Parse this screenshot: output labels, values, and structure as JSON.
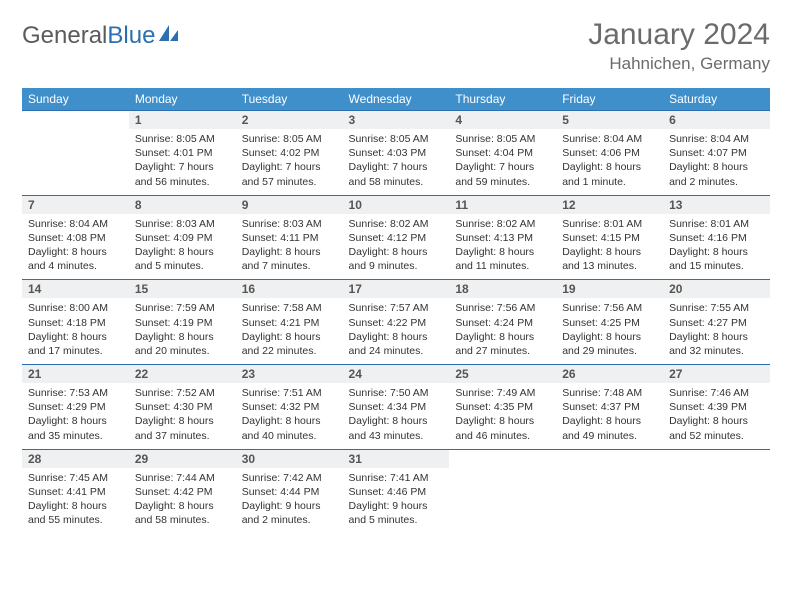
{
  "logo": {
    "text1": "General",
    "text2": "Blue"
  },
  "title": "January 2024",
  "location": "Hahnichen, Germany",
  "day_headers": [
    "Sunday",
    "Monday",
    "Tuesday",
    "Wednesday",
    "Thursday",
    "Friday",
    "Saturday"
  ],
  "colors": {
    "header_bg": "#3f8fcb",
    "header_text": "#ffffff",
    "daynum_bg": "#eef0f1",
    "border": "#2c6fb0",
    "text": "#333333",
    "title_text": "#6b6b6b"
  },
  "weeks": [
    {
      "nums": [
        "",
        "1",
        "2",
        "3",
        "4",
        "5",
        "6"
      ],
      "cells": [
        "",
        "Sunrise: 8:05 AM\nSunset: 4:01 PM\nDaylight: 7 hours and 56 minutes.",
        "Sunrise: 8:05 AM\nSunset: 4:02 PM\nDaylight: 7 hours and 57 minutes.",
        "Sunrise: 8:05 AM\nSunset: 4:03 PM\nDaylight: 7 hours and 58 minutes.",
        "Sunrise: 8:05 AM\nSunset: 4:04 PM\nDaylight: 7 hours and 59 minutes.",
        "Sunrise: 8:04 AM\nSunset: 4:06 PM\nDaylight: 8 hours and 1 minute.",
        "Sunrise: 8:04 AM\nSunset: 4:07 PM\nDaylight: 8 hours and 2 minutes."
      ]
    },
    {
      "nums": [
        "7",
        "8",
        "9",
        "10",
        "11",
        "12",
        "13"
      ],
      "cells": [
        "Sunrise: 8:04 AM\nSunset: 4:08 PM\nDaylight: 8 hours and 4 minutes.",
        "Sunrise: 8:03 AM\nSunset: 4:09 PM\nDaylight: 8 hours and 5 minutes.",
        "Sunrise: 8:03 AM\nSunset: 4:11 PM\nDaylight: 8 hours and 7 minutes.",
        "Sunrise: 8:02 AM\nSunset: 4:12 PM\nDaylight: 8 hours and 9 minutes.",
        "Sunrise: 8:02 AM\nSunset: 4:13 PM\nDaylight: 8 hours and 11 minutes.",
        "Sunrise: 8:01 AM\nSunset: 4:15 PM\nDaylight: 8 hours and 13 minutes.",
        "Sunrise: 8:01 AM\nSunset: 4:16 PM\nDaylight: 8 hours and 15 minutes."
      ]
    },
    {
      "nums": [
        "14",
        "15",
        "16",
        "17",
        "18",
        "19",
        "20"
      ],
      "cells": [
        "Sunrise: 8:00 AM\nSunset: 4:18 PM\nDaylight: 8 hours and 17 minutes.",
        "Sunrise: 7:59 AM\nSunset: 4:19 PM\nDaylight: 8 hours and 20 minutes.",
        "Sunrise: 7:58 AM\nSunset: 4:21 PM\nDaylight: 8 hours and 22 minutes.",
        "Sunrise: 7:57 AM\nSunset: 4:22 PM\nDaylight: 8 hours and 24 minutes.",
        "Sunrise: 7:56 AM\nSunset: 4:24 PM\nDaylight: 8 hours and 27 minutes.",
        "Sunrise: 7:56 AM\nSunset: 4:25 PM\nDaylight: 8 hours and 29 minutes.",
        "Sunrise: 7:55 AM\nSunset: 4:27 PM\nDaylight: 8 hours and 32 minutes."
      ]
    },
    {
      "nums": [
        "21",
        "22",
        "23",
        "24",
        "25",
        "26",
        "27"
      ],
      "cells": [
        "Sunrise: 7:53 AM\nSunset: 4:29 PM\nDaylight: 8 hours and 35 minutes.",
        "Sunrise: 7:52 AM\nSunset: 4:30 PM\nDaylight: 8 hours and 37 minutes.",
        "Sunrise: 7:51 AM\nSunset: 4:32 PM\nDaylight: 8 hours and 40 minutes.",
        "Sunrise: 7:50 AM\nSunset: 4:34 PM\nDaylight: 8 hours and 43 minutes.",
        "Sunrise: 7:49 AM\nSunset: 4:35 PM\nDaylight: 8 hours and 46 minutes.",
        "Sunrise: 7:48 AM\nSunset: 4:37 PM\nDaylight: 8 hours and 49 minutes.",
        "Sunrise: 7:46 AM\nSunset: 4:39 PM\nDaylight: 8 hours and 52 minutes."
      ]
    },
    {
      "nums": [
        "28",
        "29",
        "30",
        "31",
        "",
        "",
        ""
      ],
      "cells": [
        "Sunrise: 7:45 AM\nSunset: 4:41 PM\nDaylight: 8 hours and 55 minutes.",
        "Sunrise: 7:44 AM\nSunset: 4:42 PM\nDaylight: 8 hours and 58 minutes.",
        "Sunrise: 7:42 AM\nSunset: 4:44 PM\nDaylight: 9 hours and 2 minutes.",
        "Sunrise: 7:41 AM\nSunset: 4:46 PM\nDaylight: 9 hours and 5 minutes.",
        "",
        "",
        ""
      ]
    }
  ]
}
